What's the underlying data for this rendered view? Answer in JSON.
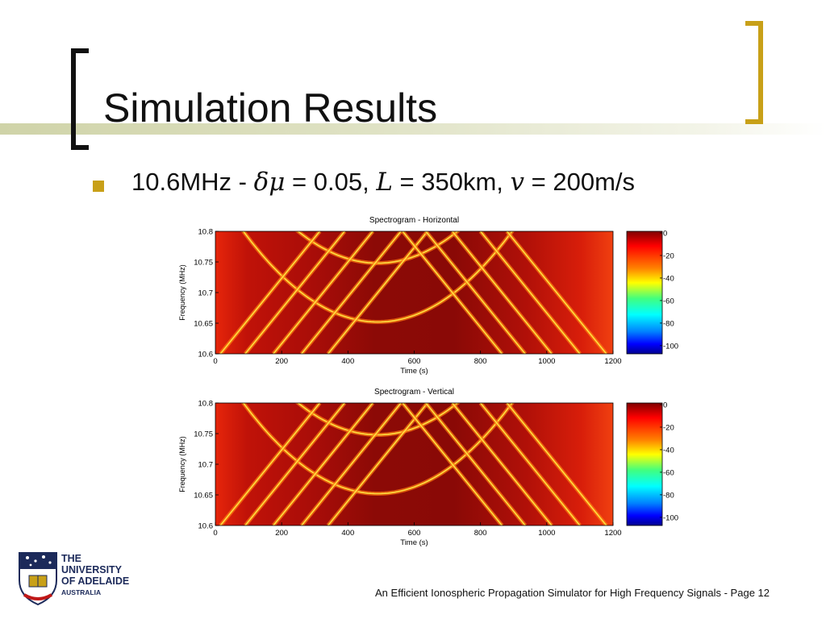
{
  "slide": {
    "title": "Simulation Results",
    "bullet_segments": [
      "10.6MHz - ",
      "δμ",
      " = 0.05, ",
      "L",
      " = 350km, ",
      "v",
      " = 200m/s"
    ],
    "footer": "An Efficient Ionospheric Propagation Simulator for High Frequency Signals - Page 12",
    "logo": {
      "line1": "THE UNIVERSITY",
      "line2": "OF ADELAIDE",
      "line3": "AUSTRALIA"
    },
    "colors": {
      "accent": "#c8a018",
      "text": "#111111",
      "logo_blue": "#1c2a5a"
    }
  },
  "chart_data": [
    {
      "type": "heatmap",
      "title": "Spectrogram - Horizontal",
      "xlabel": "Time (s)",
      "ylabel": "Frequency (MHz)",
      "xlim": [
        0,
        1200
      ],
      "ylim": [
        10.6,
        10.8
      ],
      "xticks": [
        "0",
        "200",
        "400",
        "600",
        "800",
        "1000",
        "1200"
      ],
      "yticks": [
        "10.6",
        "10.65",
        "10.7",
        "10.75",
        "10.8"
      ],
      "colorbar_ticks": [
        "0",
        "-20",
        "-40",
        "-60",
        "-80",
        "-100"
      ],
      "colorbar_range": [
        -100,
        0
      ],
      "colormap": "jet",
      "arcs": [
        {
          "t_min": 490,
          "f_min": 10.652
        },
        {
          "t_min": 490,
          "f_min": 10.748
        }
      ],
      "diagonal_traces": {
        "left_group_t_at_10_6": [
          15,
          90,
          175,
          260,
          340
        ],
        "right_group_t_at_10_6": [
          865,
          935,
          1015,
          1100,
          1180
        ]
      }
    },
    {
      "type": "heatmap",
      "title": "Spectrogram - Vertical",
      "xlabel": "Time (s)",
      "ylabel": "Frequency (MHz)",
      "xlim": [
        0,
        1200
      ],
      "ylim": [
        10.6,
        10.8
      ],
      "xticks": [
        "0",
        "200",
        "400",
        "600",
        "800",
        "1000",
        "1200"
      ],
      "yticks": [
        "10.6",
        "10.65",
        "10.7",
        "10.75",
        "10.8"
      ],
      "colorbar_ticks": [
        "0",
        "-20",
        "-40",
        "-60",
        "-80",
        "-100"
      ],
      "colorbar_range": [
        -100,
        0
      ],
      "colormap": "jet",
      "arcs": [
        {
          "t_min": 490,
          "f_min": 10.652
        },
        {
          "t_min": 490,
          "f_min": 10.748
        }
      ],
      "diagonal_traces": {
        "left_group_t_at_10_6": [
          15,
          90,
          175,
          260,
          340
        ],
        "right_group_t_at_10_6": [
          865,
          935,
          1015,
          1100,
          1180
        ]
      }
    }
  ]
}
